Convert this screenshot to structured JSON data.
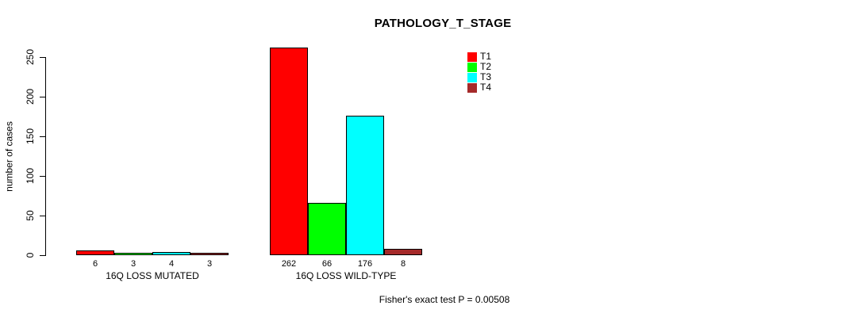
{
  "chart_data": {
    "type": "bar",
    "title": "PATHOLOGY_T_STAGE",
    "ylabel": "number of cases",
    "xlabel": "",
    "ylim": [
      0,
      250
    ],
    "yticks": [
      0,
      50,
      100,
      150,
      200,
      250
    ],
    "grid": false,
    "legend_position": "top-right-inside",
    "categories": [
      "16Q LOSS MUTATED",
      "16Q LOSS WILD-TYPE"
    ],
    "series": [
      {
        "name": "T1",
        "color": "#ff0000",
        "values": [
          6,
          262
        ]
      },
      {
        "name": "T2",
        "color": "#00ff00",
        "values": [
          3,
          66
        ]
      },
      {
        "name": "T3",
        "color": "#00ffff",
        "values": [
          4,
          176
        ]
      },
      {
        "name": "T4",
        "color": "#a52a2a",
        "values": [
          3,
          8
        ]
      }
    ]
  },
  "footer": {
    "note": "Fisher's exact test P = 0.00508"
  }
}
